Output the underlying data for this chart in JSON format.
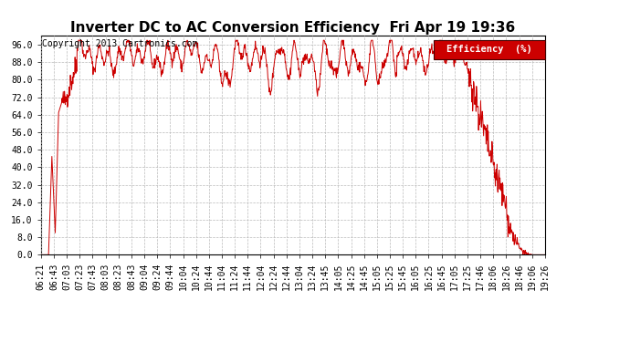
{
  "title": "Inverter DC to AC Conversion Efficiency  Fri Apr 19 19:36",
  "copyright": "Copyright 2013 Cartronics.com",
  "legend_label": "Efficiency  (%)",
  "legend_bg": "#cc0000",
  "legend_fg": "#ffffff",
  "line_color": "#cc0000",
  "bg_color": "#ffffff",
  "grid_color": "#bbbbbb",
  "ylim": [
    0.0,
    100.0
  ],
  "yticks": [
    0.0,
    8.0,
    16.0,
    24.0,
    32.0,
    40.0,
    48.0,
    56.0,
    64.0,
    72.0,
    80.0,
    88.0,
    96.0
  ],
  "xtick_labels": [
    "06:21",
    "06:43",
    "07:03",
    "07:23",
    "07:43",
    "08:03",
    "08:23",
    "08:43",
    "09:04",
    "09:24",
    "09:44",
    "10:04",
    "10:24",
    "10:44",
    "11:04",
    "11:24",
    "11:44",
    "12:04",
    "12:24",
    "12:44",
    "13:04",
    "13:24",
    "13:45",
    "14:05",
    "14:25",
    "14:45",
    "15:05",
    "15:25",
    "15:45",
    "16:05",
    "16:25",
    "16:45",
    "17:05",
    "17:25",
    "17:46",
    "18:06",
    "18:26",
    "18:46",
    "19:06",
    "19:26"
  ],
  "title_fontsize": 11,
  "copyright_fontsize": 7,
  "tick_fontsize": 7
}
